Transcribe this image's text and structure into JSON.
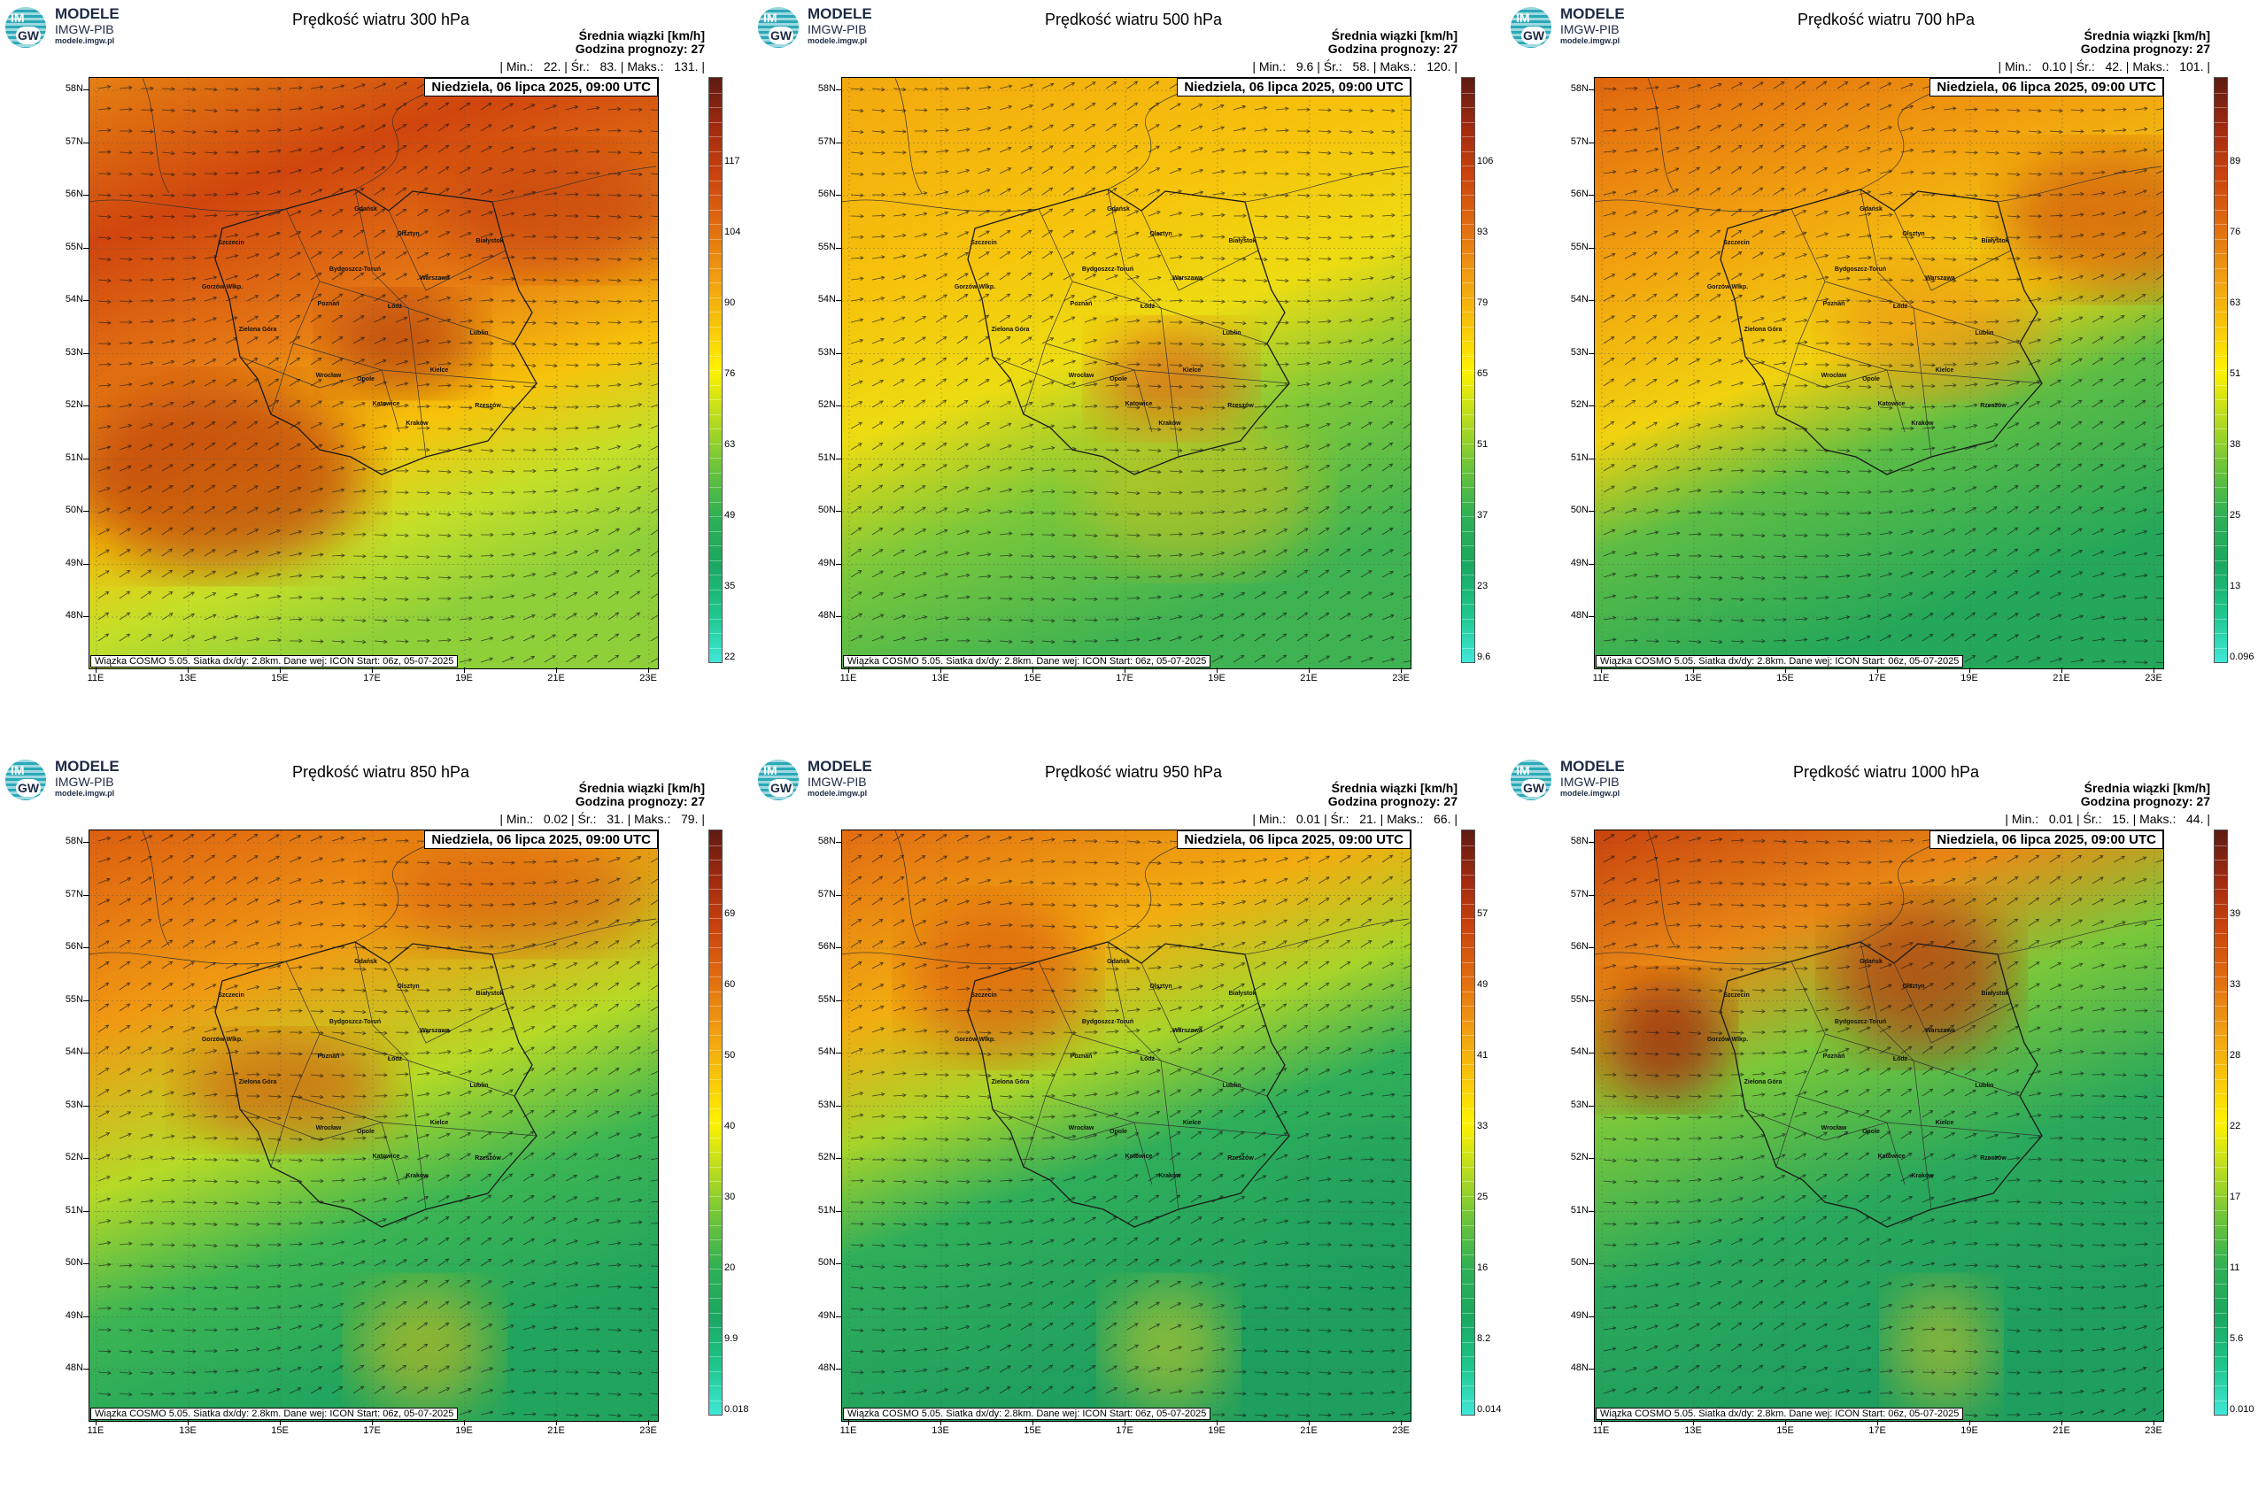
{
  "logo": {
    "line1": "MODELE",
    "line2": "IMGW-PIB",
    "line3": "modele.imgw.pl",
    "badge_top": "IM",
    "badge_bottom": "GW"
  },
  "header": {
    "subtitle": "Średnia wiązki [km/h]",
    "forecast_hour": "Godzina prognozy: 27",
    "date": "Niedziela, 06 lipca 2025, 09:00 UTC"
  },
  "footer_text": "Wiązka COSMO 5.05. Siatka dx/dy: 2.8km. Dane wej: ICON Start: 06z, 05-07-2025",
  "lat_labels": [
    "58N",
    "57N",
    "56N",
    "55N",
    "54N",
    "53N",
    "52N",
    "51N",
    "50N",
    "49N",
    "48N"
  ],
  "lon_labels": [
    "11E",
    "13E",
    "15E",
    "17E",
    "19E",
    "21E",
    "23E"
  ],
  "cities": [
    "Gdańsk",
    "Olsztyn",
    "Białystok",
    "Szczecin",
    "Bydgoszcz-Toruń",
    "Poznań",
    "Warszawa",
    "Gorzów Wlkp.",
    "Zielona Góra",
    "Łódź",
    "Lublin",
    "Wrocław",
    "Opole",
    "Kielce",
    "Katowice",
    "Kraków",
    "Rzeszów"
  ],
  "colors": {
    "ramp": [
      "#40e8d8",
      "#1ec68c",
      "#1aa860",
      "#2fb055",
      "#6cc43a",
      "#b8dc20",
      "#fff200",
      "#f7c30a",
      "#ef9a12",
      "#e06b10",
      "#c9430e",
      "#a02a10",
      "#5e1b12"
    ]
  },
  "panels": [
    {
      "title": "Prędkość wiatru 300 hPa",
      "min": "22.",
      "avg": "83.",
      "max": "131.",
      "scale": [
        "117",
        "104",
        "90",
        "76",
        "63",
        "49",
        "35",
        "22"
      ],
      "field": "300"
    },
    {
      "title": "Prędkość wiatru 500 hPa",
      "min": "9.6",
      "avg": "58.",
      "max": "120.",
      "scale": [
        "106",
        "93",
        "79",
        "65",
        "51",
        "37",
        "23",
        "9.6"
      ],
      "field": "500"
    },
    {
      "title": "Prędkość wiatru 700 hPa",
      "min": "0.10",
      "avg": "42.",
      "max": "101.",
      "scale": [
        "89",
        "76",
        "63",
        "51",
        "38",
        "25",
        "13",
        "0.096"
      ],
      "field": "700"
    },
    {
      "title": "Prędkość wiatru 850 hPa",
      "min": "0.02",
      "avg": "31.",
      "max": "79.",
      "scale": [
        "69",
        "60",
        "50",
        "40",
        "30",
        "20",
        "9.9",
        "0.018"
      ],
      "field": "850"
    },
    {
      "title": "Prędkość wiatru 950 hPa",
      "min": "0.01",
      "avg": "21.",
      "max": "66.",
      "scale": [
        "57",
        "49",
        "41",
        "33",
        "25",
        "16",
        "8.2",
        "0.014"
      ],
      "field": "950"
    },
    {
      "title": "Prędkość wiatru 1000 hPa",
      "min": "0.01",
      "avg": "15.",
      "max": "44.",
      "scale": [
        "39",
        "33",
        "28",
        "22",
        "17",
        "11",
        "5.6",
        "0.010"
      ],
      "field": "1000"
    }
  ]
}
